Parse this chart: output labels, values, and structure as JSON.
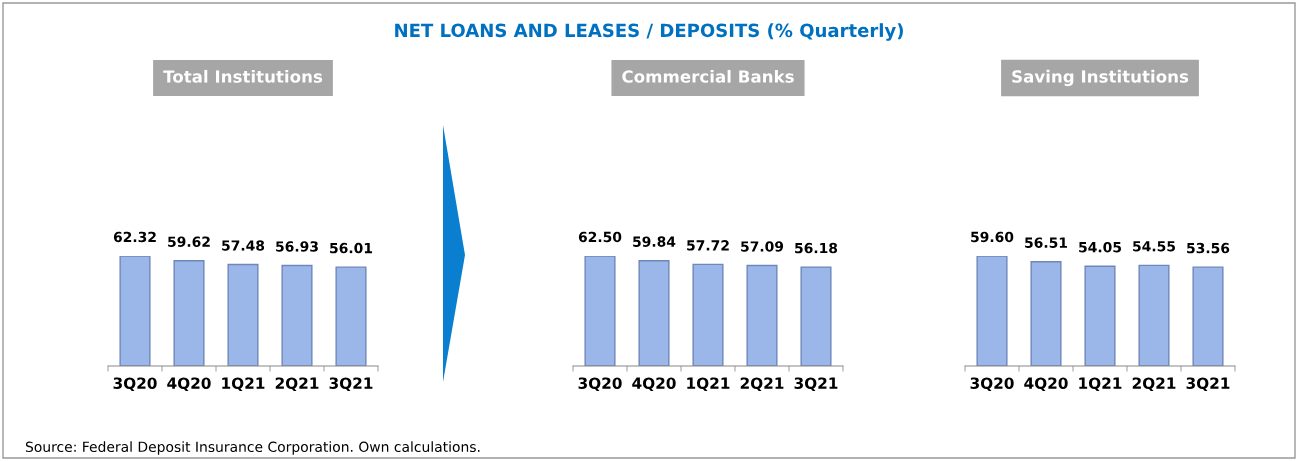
{
  "chart_data": [
    {
      "type": "bar",
      "title": "Total Institutions",
      "annotations": [
        "NET LOANS AND LEASES / DEPOSITS (% Quarterly)",
        "Source: Federal Deposit Insurance Corporation. Own calculations."
      ],
      "categories": [
        "3Q20",
        "4Q20",
        "1Q21",
        "2Q21",
        "3Q21"
      ],
      "values": [
        62.32,
        59.62,
        57.48,
        56.93,
        56.01
      ],
      "color": "#9bb7ea",
      "tick_labels": "x",
      "data_labels": true
    },
    {
      "type": "bar",
      "title": "Commercial Banks",
      "categories": [
        "3Q20",
        "4Q20",
        "1Q21",
        "2Q21",
        "3Q21"
      ],
      "values": [
        62.5,
        59.84,
        57.72,
        57.09,
        56.18
      ],
      "value_labels": [
        "62.50",
        "59.84",
        "57.72",
        "57.09",
        "56.18"
      ],
      "color": "#9bb7ea",
      "tick_labels": "x"
    },
    {
      "type": "bar",
      "title": "Saving Institutions",
      "categories": [
        "3Q20",
        "4Q20",
        "1Q21",
        "2Q21",
        "3Q21"
      ],
      "values": [
        59.6,
        56.51,
        54.05,
        54.55,
        53.56
      ],
      "value_labels": [
        "59.60",
        "56.51",
        "54.05",
        "54.55",
        "53.56"
      ],
      "color": "#9bb7ea",
      "tick_labels": "x"
    }
  ]
}
